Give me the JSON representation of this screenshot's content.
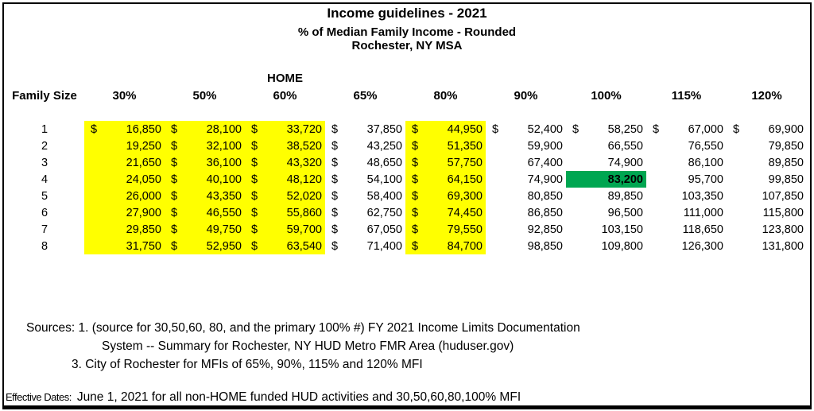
{
  "header": {
    "title": "Income guidelines - 2021",
    "subtitle1": "% of Median Family Income - Rounded",
    "subtitle2": "Rochester, NY MSA"
  },
  "table": {
    "home_label": "HOME",
    "row_header": "Family Size",
    "columns": [
      "30%",
      "50%",
      "60%",
      "65%",
      "80%",
      "90%",
      "100%",
      "115%",
      "120%"
    ],
    "currency_symbol": "$",
    "yellow_columns": [
      0,
      1,
      2,
      4
    ],
    "dollar_all_rows_columns": [
      1,
      2,
      3,
      4
    ],
    "dollar_first_row_columns": [
      0,
      5,
      6,
      7,
      8
    ],
    "green_cell": {
      "row": 3,
      "col": 6
    },
    "colors": {
      "highlight_yellow": "#FFFF00",
      "highlight_green": "#00A651"
    },
    "rows": [
      {
        "family_size": "1",
        "values": [
          "16,850",
          "28,100",
          "33,720",
          "37,850",
          "44,950",
          "52,400",
          "58,250",
          "67,000",
          "69,900"
        ]
      },
      {
        "family_size": "2",
        "values": [
          "19,250",
          "32,100",
          "38,520",
          "43,250",
          "51,350",
          "59,900",
          "66,550",
          "76,550",
          "79,850"
        ]
      },
      {
        "family_size": "3",
        "values": [
          "21,650",
          "36,100",
          "43,320",
          "48,650",
          "57,750",
          "67,400",
          "74,900",
          "86,100",
          "89,850"
        ]
      },
      {
        "family_size": "4",
        "values": [
          "24,050",
          "40,100",
          "48,120",
          "54,100",
          "64,150",
          "74,900",
          "83,200",
          "95,700",
          "99,850"
        ]
      },
      {
        "family_size": "5",
        "values": [
          "26,000",
          "43,350",
          "52,020",
          "58,400",
          "69,300",
          "80,850",
          "89,850",
          "103,350",
          "107,850"
        ]
      },
      {
        "family_size": "6",
        "values": [
          "27,900",
          "46,550",
          "55,860",
          "62,750",
          "74,450",
          "86,850",
          "96,500",
          "111,000",
          "115,800"
        ]
      },
      {
        "family_size": "7",
        "values": [
          "29,850",
          "49,750",
          "59,700",
          "67,050",
          "79,550",
          "92,850",
          "103,150",
          "118,650",
          "123,800"
        ]
      },
      {
        "family_size": "8",
        "values": [
          "31,750",
          "52,950",
          "63,540",
          "71,400",
          "84,700",
          "98,850",
          "109,800",
          "126,300",
          "131,800"
        ]
      }
    ]
  },
  "sources": {
    "line1": "Sources: 1. (source for 30,50,60, 80, and the primary 100% #) FY 2021 Income Limits Documentation",
    "line2": "System -- Summary for Rochester, NY HUD Metro FMR Area (huduser.gov)",
    "line3": "3.  City of Rochester for MFIs of 65%, 90%, 115% and 120% MFI"
  },
  "effective": {
    "label": "Effective Dates:",
    "text": "June 1, 2021 for all non-HOME funded HUD activities and 30,50,60,80,100% MFI"
  }
}
